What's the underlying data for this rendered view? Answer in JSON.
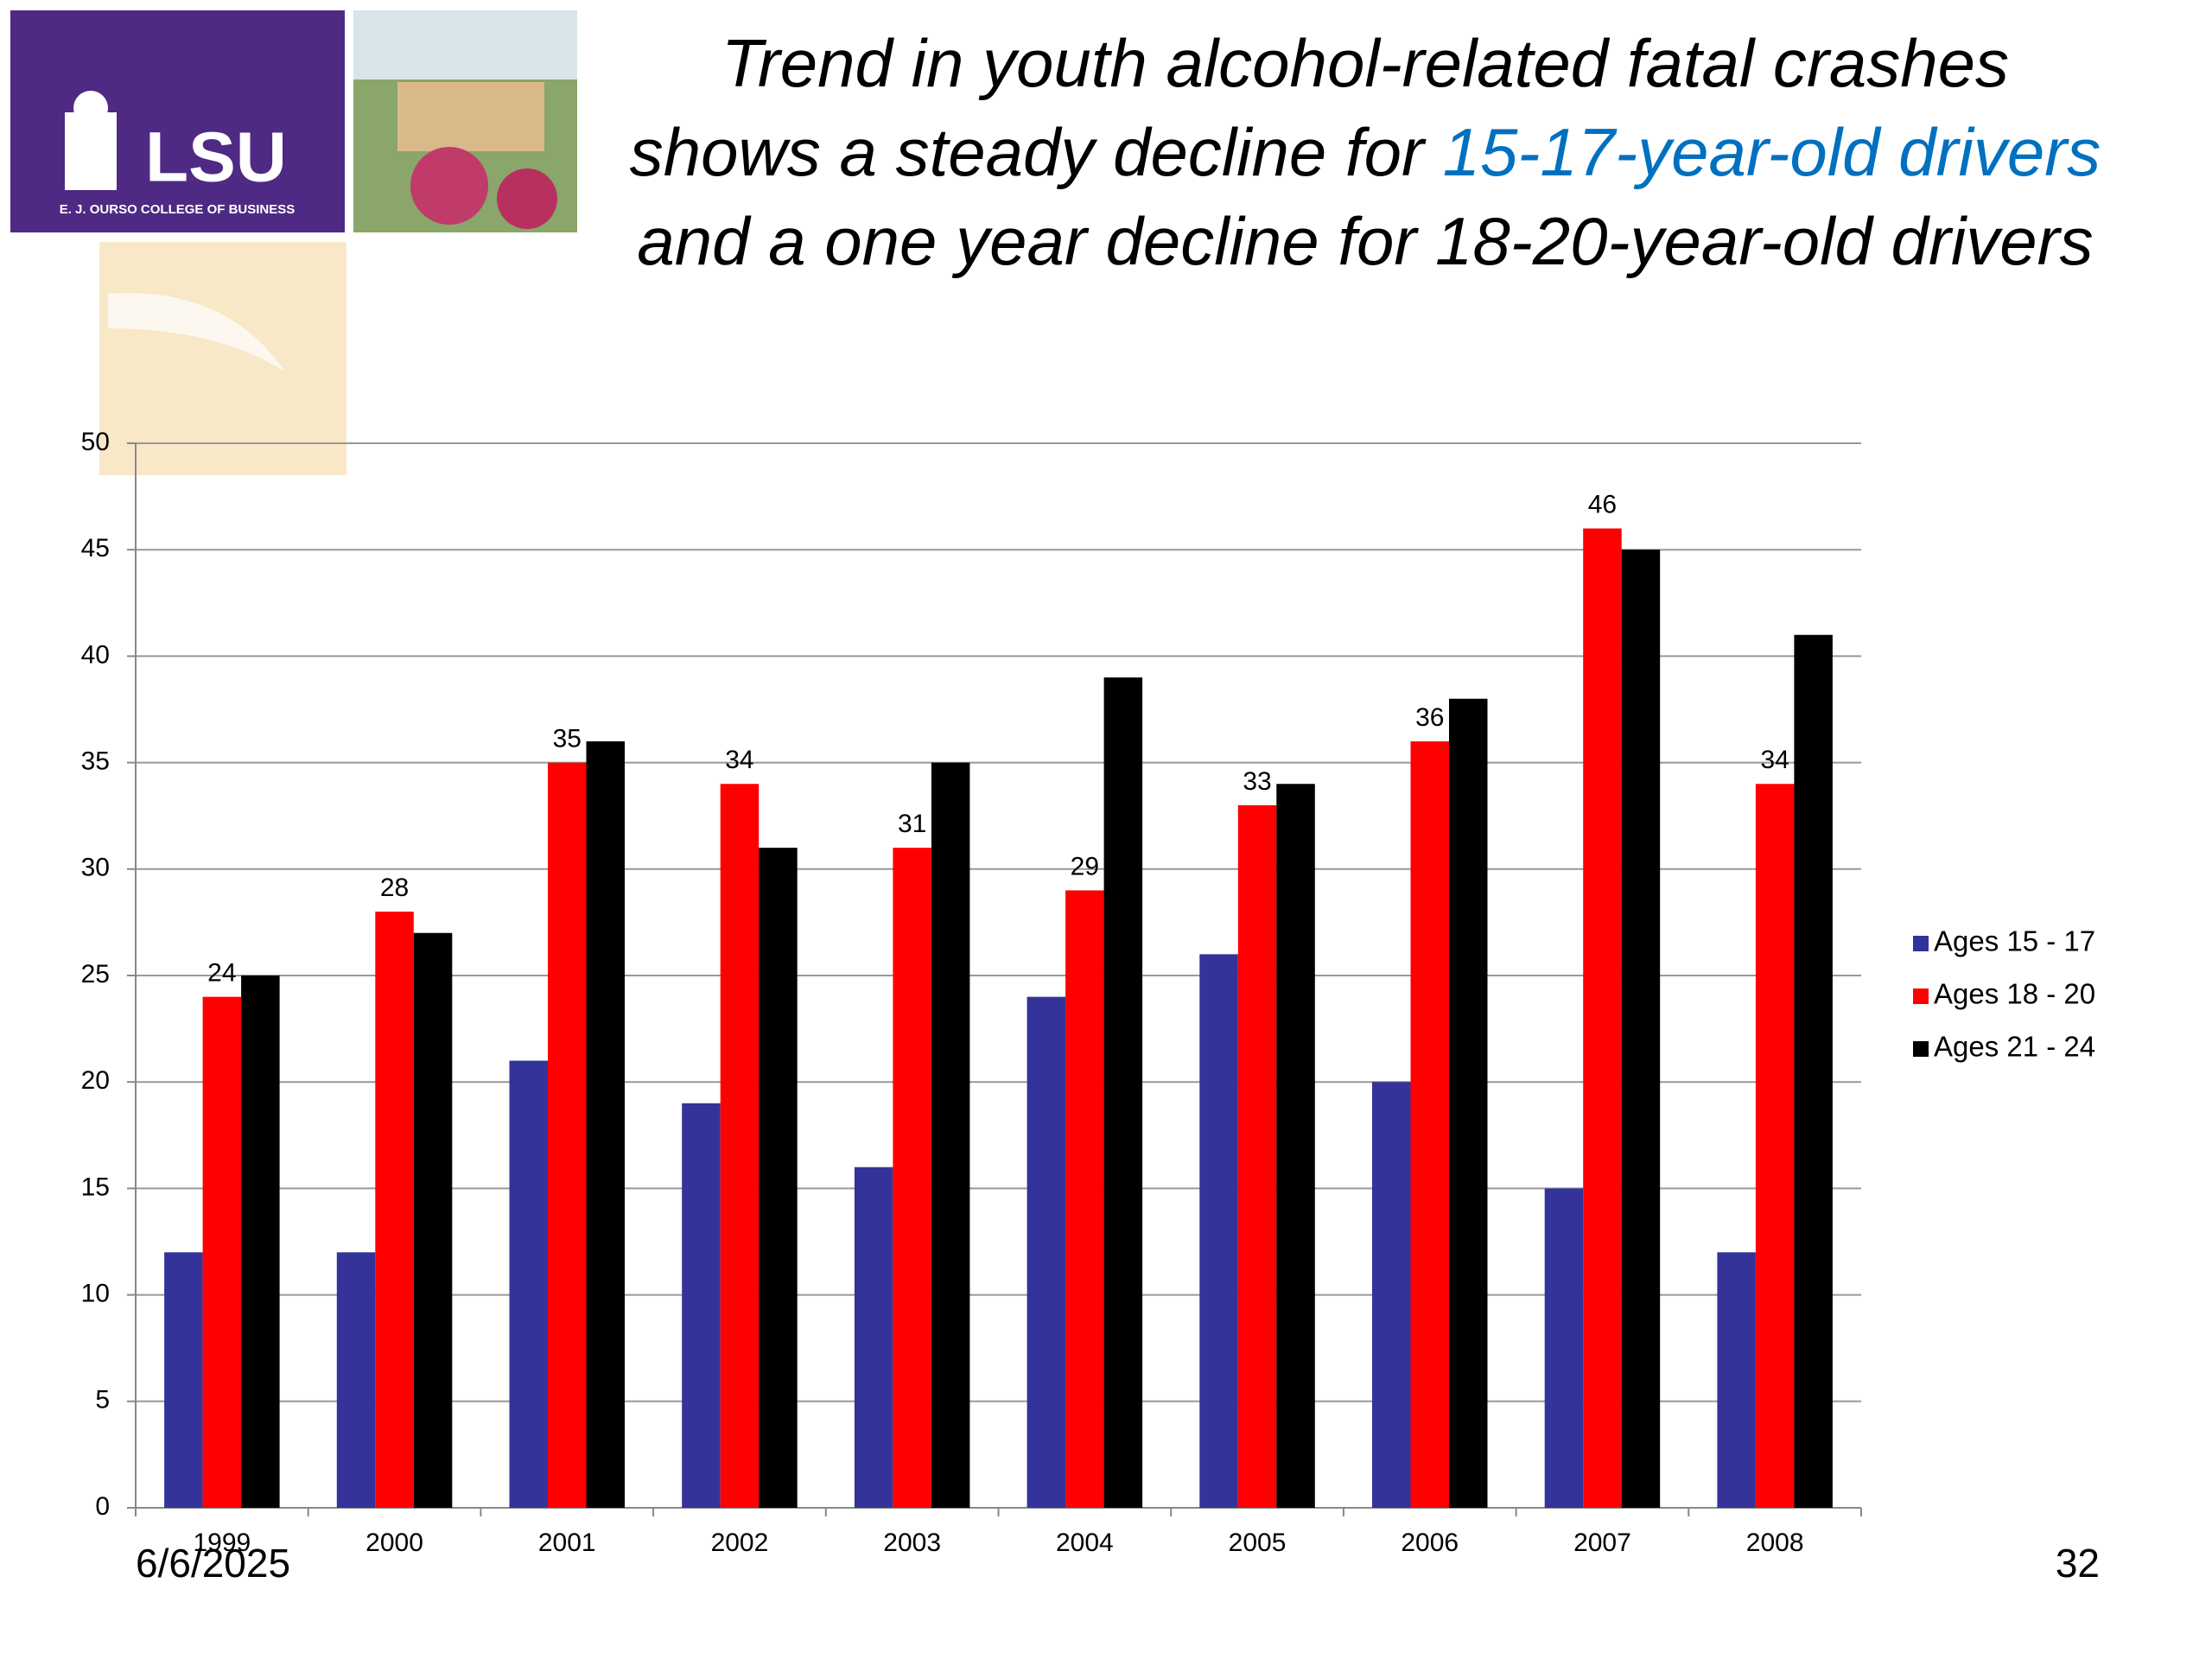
{
  "header": {
    "logo_text": "LSU",
    "logo_subtitle": "E. J. OURSO COLLEGE OF BUSINESS"
  },
  "chart_data": {
    "type": "bar",
    "title": {
      "before": "Trend in youth alcohol-related fatal crashes shows a steady decline for ",
      "highlight": "15-17-year-old drivers",
      "after": " and a one year decline for 18-20-year-old drivers"
    },
    "categories": [
      "1999",
      "2000",
      "2001",
      "2002",
      "2003",
      "2004",
      "2005",
      "2006",
      "2007",
      "2008"
    ],
    "series": [
      {
        "name": "Ages 15 - 17",
        "color": "#333399",
        "values": [
          12,
          12,
          21,
          19,
          16,
          24,
          26,
          20,
          15,
          12
        ],
        "data_labels": false
      },
      {
        "name": "Ages 18 - 20",
        "color": "#ff0000",
        "values": [
          24,
          28,
          35,
          34,
          31,
          29,
          33,
          36,
          46,
          34
        ],
        "data_labels": true
      },
      {
        "name": "Ages 21 - 24",
        "color": "#000000",
        "values": [
          25,
          27,
          36,
          31,
          35,
          39,
          34,
          38,
          45,
          41
        ],
        "data_labels": false
      }
    ],
    "ylim": [
      0,
      50
    ],
    "yticks": [
      0,
      5,
      10,
      15,
      20,
      25,
      30,
      35,
      40,
      45,
      50
    ],
    "grid": true,
    "legend": "right"
  },
  "footer": {
    "date": "6/6/2025",
    "page": "32"
  }
}
